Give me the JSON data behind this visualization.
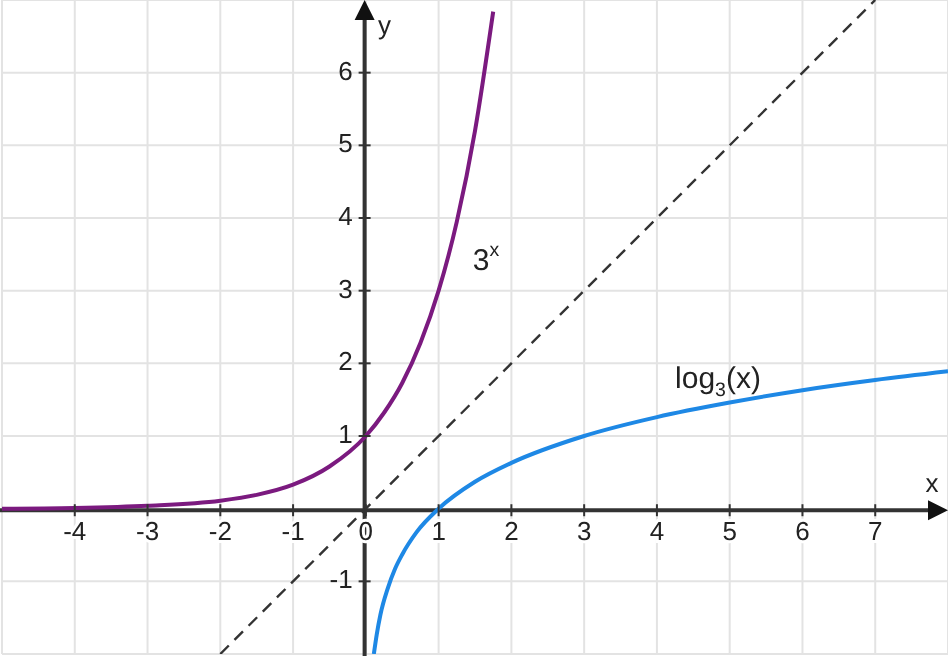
{
  "chart_data": {
    "type": "line",
    "xlabel": "x",
    "ylabel": "y",
    "xlim": [
      -5,
      8
    ],
    "ylim": [
      -2,
      7
    ],
    "xticks": [
      -4,
      -3,
      -2,
      -1,
      0,
      1,
      2,
      3,
      4,
      5,
      6,
      7
    ],
    "yticks": [
      -1,
      1,
      2,
      3,
      4,
      5,
      6
    ],
    "grid": true,
    "marker": "none",
    "series": [
      {
        "color": "#7b1a7f",
        "line_style": "solid",
        "x": [
          -5,
          -4,
          -3,
          -2,
          -1.5,
          -1,
          -0.5,
          0,
          0.25,
          0.5,
          0.75,
          1,
          1.25,
          1.5,
          1.75
        ],
        "values": [
          0,
          0.01,
          0.04,
          0.11,
          0.19,
          0.33,
          0.58,
          1,
          1.32,
          1.73,
          2.28,
          3,
          3.95,
          5.2,
          6.84
        ]
      },
      {
        "color": "#1e88e5",
        "line_style": "solid",
        "x": [
          0.11,
          0.15,
          0.2,
          0.3,
          0.4,
          0.5,
          0.7,
          1,
          1.5,
          2,
          3,
          4,
          5,
          6,
          7,
          8
        ],
        "values": [
          -2,
          -1.73,
          -1.46,
          -1.1,
          -0.83,
          -0.63,
          -0.32,
          0,
          0.37,
          0.63,
          1,
          1.26,
          1.46,
          1.63,
          1.77,
          1.89
        ]
      },
      {
        "color": "#333333",
        "line_style": "dashed",
        "x": [
          -2,
          7
        ],
        "values": [
          -2,
          7
        ]
      }
    ],
    "annotations": [
      "3$^{x}$",
      "log$_{3}$(x)"
    ]
  }
}
